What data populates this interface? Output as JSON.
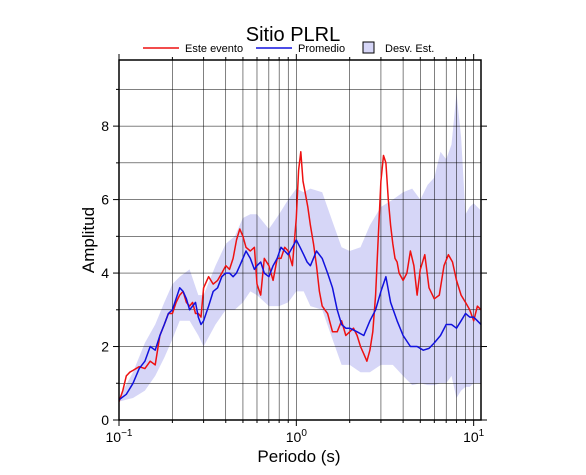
{
  "chart_data": {
    "type": "line",
    "title": "Sitio PLRL",
    "xlabel": "Periodo (s)",
    "ylabel": "Amplitud",
    "xscale": "log",
    "xlim": [
      0.1,
      11
    ],
    "ylim": [
      0,
      9.8
    ],
    "grid": true,
    "legend_position": "top",
    "x_ticks": [
      0.1,
      1,
      10
    ],
    "x_tick_labels": [
      {
        "base": "10",
        "exp": "−1"
      },
      {
        "base": "10",
        "exp": "0"
      },
      {
        "base": "10",
        "exp": "1"
      }
    ],
    "y_ticks": [
      0,
      2,
      4,
      6,
      8
    ],
    "y_tick_labels": [
      "0",
      "2",
      "4",
      "6",
      "8"
    ],
    "legend": [
      {
        "label": "Este evento",
        "kind": "line",
        "color": "#ee1111"
      },
      {
        "label": "Promedio",
        "kind": "line",
        "color": "#1111dd"
      },
      {
        "label": "Desv. Est.",
        "kind": "patch",
        "color": "#d6d6f7"
      }
    ],
    "series": [
      {
        "name": "Este evento",
        "color": "#ee1111",
        "x": [
          0.1,
          0.105,
          0.11,
          0.115,
          0.12,
          0.13,
          0.14,
          0.15,
          0.16,
          0.17,
          0.18,
          0.19,
          0.2,
          0.21,
          0.22,
          0.23,
          0.24,
          0.25,
          0.26,
          0.27,
          0.28,
          0.29,
          0.3,
          0.32,
          0.34,
          0.36,
          0.38,
          0.4,
          0.42,
          0.44,
          0.46,
          0.48,
          0.5,
          0.52,
          0.55,
          0.58,
          0.6,
          0.63,
          0.66,
          0.7,
          0.74,
          0.78,
          0.82,
          0.86,
          0.9,
          0.95,
          1.0,
          1.03,
          1.06,
          1.09,
          1.12,
          1.16,
          1.2,
          1.25,
          1.3,
          1.35,
          1.4,
          1.45,
          1.5,
          1.6,
          1.7,
          1.8,
          1.9,
          2.0,
          2.1,
          2.2,
          2.3,
          2.4,
          2.5,
          2.6,
          2.7,
          2.8,
          2.9,
          3.0,
          3.1,
          3.2,
          3.3,
          3.4,
          3.5,
          3.6,
          3.7,
          3.8,
          3.9,
          4.0,
          4.2,
          4.4,
          4.6,
          4.8,
          5.0,
          5.3,
          5.6,
          6.0,
          6.4,
          6.8,
          7.2,
          7.6,
          8.0,
          8.5,
          9.0,
          9.5,
          10.0,
          10.5,
          11.0
        ],
        "y": [
          0.5,
          0.8,
          1.2,
          1.3,
          1.35,
          1.45,
          1.4,
          1.6,
          1.5,
          2.3,
          2.6,
          2.9,
          2.9,
          3.2,
          3.4,
          3.5,
          3.2,
          3.1,
          3.2,
          2.9,
          2.9,
          2.8,
          3.6,
          3.9,
          3.7,
          3.8,
          4.0,
          4.2,
          4.1,
          4.4,
          4.9,
          5.2,
          5.0,
          4.7,
          4.6,
          4.7,
          3.7,
          3.4,
          4.4,
          4.2,
          3.8,
          4.4,
          4.4,
          4.7,
          4.6,
          4.2,
          5.5,
          6.8,
          7.3,
          6.5,
          6.2,
          5.8,
          5.3,
          4.8,
          4.2,
          3.5,
          3.1,
          3.0,
          2.9,
          2.4,
          2.4,
          2.7,
          2.3,
          2.4,
          2.5,
          2.3,
          2.0,
          1.8,
          1.6,
          1.9,
          2.4,
          3.4,
          5.0,
          6.5,
          7.2,
          7.0,
          6.0,
          5.3,
          4.8,
          4.4,
          4.3,
          4.0,
          3.9,
          3.8,
          4.0,
          4.6,
          4.2,
          3.4,
          4.1,
          4.5,
          3.6,
          3.3,
          3.4,
          4.2,
          4.5,
          4.3,
          3.8,
          3.4,
          3.2,
          3.0,
          2.7,
          3.1,
          3.0
        ]
      },
      {
        "name": "Promedio",
        "color": "#1111dd",
        "x": [
          0.1,
          0.11,
          0.12,
          0.13,
          0.14,
          0.15,
          0.16,
          0.17,
          0.18,
          0.19,
          0.2,
          0.21,
          0.22,
          0.23,
          0.24,
          0.25,
          0.26,
          0.27,
          0.28,
          0.29,
          0.3,
          0.32,
          0.34,
          0.36,
          0.38,
          0.4,
          0.42,
          0.44,
          0.46,
          0.48,
          0.5,
          0.52,
          0.55,
          0.58,
          0.6,
          0.63,
          0.66,
          0.7,
          0.74,
          0.78,
          0.82,
          0.86,
          0.9,
          0.95,
          1.0,
          1.05,
          1.1,
          1.15,
          1.2,
          1.3,
          1.4,
          1.5,
          1.6,
          1.7,
          1.8,
          1.9,
          2.0,
          2.2,
          2.4,
          2.6,
          2.8,
          3.0,
          3.2,
          3.4,
          3.7,
          4.0,
          4.4,
          4.8,
          5.2,
          5.6,
          6.0,
          6.5,
          7.0,
          7.5,
          8.0,
          8.5,
          9.0,
          9.5,
          10.0,
          10.5,
          11.0
        ],
        "y": [
          0.55,
          0.7,
          1.0,
          1.4,
          1.6,
          2.0,
          1.9,
          2.3,
          2.6,
          2.9,
          3.0,
          3.3,
          3.6,
          3.5,
          3.3,
          3.0,
          3.1,
          3.2,
          2.8,
          2.6,
          2.7,
          3.1,
          3.5,
          3.6,
          3.9,
          4.0,
          4.0,
          3.9,
          4.0,
          4.2,
          4.4,
          4.6,
          4.4,
          4.1,
          4.2,
          4.3,
          4.0,
          3.9,
          4.2,
          4.4,
          4.7,
          4.6,
          4.5,
          4.7,
          4.9,
          4.7,
          4.5,
          4.3,
          4.2,
          4.6,
          4.4,
          4.0,
          3.6,
          3.0,
          2.6,
          2.5,
          2.5,
          2.4,
          2.3,
          2.7,
          3.0,
          3.5,
          3.9,
          3.2,
          2.7,
          2.3,
          2.0,
          2.0,
          1.9,
          1.95,
          2.1,
          2.3,
          2.6,
          2.6,
          2.5,
          2.7,
          2.9,
          2.8,
          2.8,
          2.7,
          2.6
        ]
      }
    ],
    "band": {
      "name": "Desv. Est.",
      "color": "#d6d6f7",
      "x": [
        0.1,
        0.12,
        0.14,
        0.16,
        0.18,
        0.2,
        0.22,
        0.25,
        0.28,
        0.3,
        0.35,
        0.4,
        0.45,
        0.5,
        0.55,
        0.6,
        0.7,
        0.8,
        0.9,
        1.0,
        1.1,
        1.2,
        1.4,
        1.6,
        1.8,
        2.0,
        2.3,
        2.6,
        3.0,
        3.5,
        4.0,
        4.5,
        5.0,
        5.5,
        6.0,
        6.5,
        7.0,
        7.5,
        8.0,
        8.5,
        9.0,
        9.5,
        10.0,
        11.0
      ],
      "upper": [
        0.6,
        1.3,
        2.1,
        2.6,
        3.2,
        3.7,
        3.9,
        4.1,
        3.4,
        3.4,
        4.2,
        4.8,
        5.0,
        5.5,
        5.6,
        5.6,
        5.2,
        5.6,
        6.0,
        6.3,
        6.2,
        6.3,
        6.2,
        5.4,
        4.7,
        4.6,
        4.7,
        5.3,
        5.8,
        6.0,
        6.2,
        6.3,
        6.0,
        6.4,
        6.6,
        7.3,
        7.1,
        7.5,
        8.9,
        7.7,
        5.6,
        5.8,
        5.9,
        5.7
      ],
      "lower": [
        0.5,
        0.6,
        0.8,
        1.2,
        1.7,
        2.2,
        2.7,
        2.7,
        2.3,
        2.0,
        2.6,
        3.0,
        3.0,
        3.2,
        3.5,
        3.4,
        3.1,
        3.1,
        3.2,
        3.5,
        3.5,
        3.1,
        3.0,
        2.2,
        1.5,
        1.5,
        1.3,
        1.3,
        1.5,
        1.5,
        1.2,
        0.95,
        1.0,
        0.95,
        0.95,
        1.0,
        1.0,
        1.2,
        0.6,
        0.8,
        0.9,
        0.9,
        1.0,
        1.0
      ]
    }
  }
}
